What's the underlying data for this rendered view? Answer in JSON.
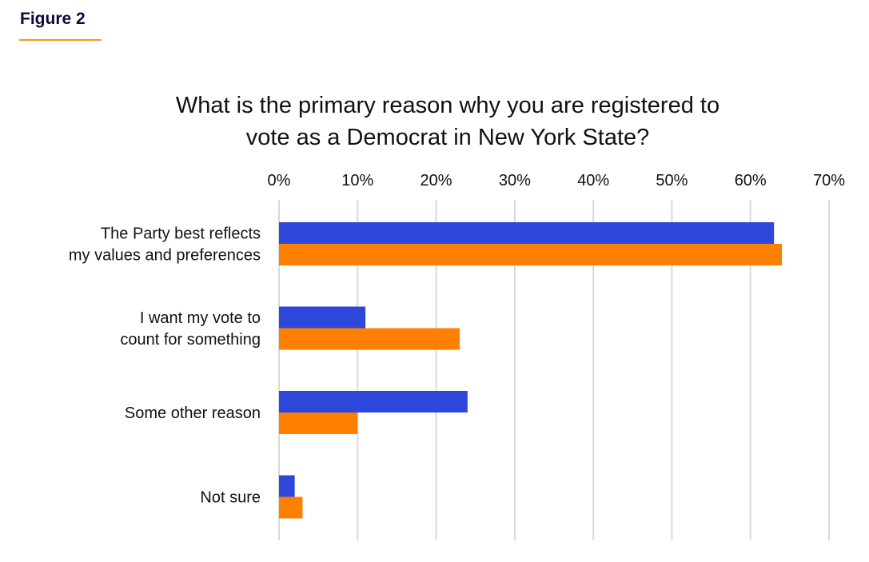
{
  "figure_label": "Figure 2",
  "chart_data": {
    "type": "bar",
    "orientation": "horizontal",
    "title": "What is the primary reason why you are registered to vote as a Democrat in New York State?",
    "title_lines": [
      "What is the primary reason why you are registered to",
      "vote as a Democrat in New York State?"
    ],
    "categories": [
      [
        "The Party best reflects",
        "my values and preferences"
      ],
      [
        "I want my vote to",
        "count for something"
      ],
      [
        "Some other reason"
      ],
      [
        "Not sure"
      ]
    ],
    "series": [
      {
        "color": "#2c47da",
        "values": [
          63,
          11,
          24,
          2
        ]
      },
      {
        "color": "#ff7f00",
        "values": [
          64,
          23,
          10,
          3
        ]
      }
    ],
    "xlim": [
      0,
      70
    ],
    "xticks": [
      0,
      10,
      20,
      30,
      40,
      50,
      60,
      70
    ],
    "xtick_labels": [
      "0%",
      "10%",
      "20%",
      "30%",
      "40%",
      "50%",
      "60%",
      "70%"
    ],
    "xlabel": "",
    "ylabel": "",
    "grid": true,
    "axis_position": "top"
  }
}
